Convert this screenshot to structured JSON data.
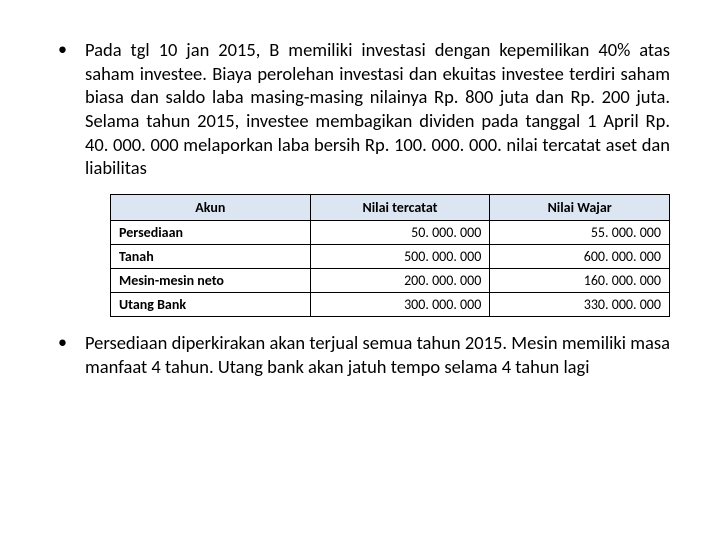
{
  "bullets": [
    "Pada tgl 10 jan 2015, B memiliki investasi dengan kepemilikan 40% atas saham investee. Biaya perolehan investasi dan ekuitas investee terdiri saham biasa dan saldo laba masing-masing nilainya Rp. 800 juta dan Rp. 200 juta. Selama tahun 2015, investee membagikan dividen pada tanggal 1 April Rp. 40. 000. 000 melaporkan laba bersih Rp. 100. 000. 000. nilai tercatat aset dan liabilitas",
    "Persediaan diperkirakan akan terjual semua tahun 2015. Mesin memiliki masa manfaat 4 tahun.  Utang bank akan jatuh tempo selama 4 tahun lagi"
  ],
  "table": {
    "headers": [
      "Akun",
      "Nilai tercatat",
      "Nilai Wajar"
    ],
    "rows": [
      [
        "Persediaan",
        "50. 000. 000",
        "55. 000. 000"
      ],
      [
        "Tanah",
        "500. 000. 000",
        "600. 000. 000"
      ],
      [
        "Mesin-mesin neto",
        "200. 000. 000",
        "160. 000. 000"
      ],
      [
        "Utang Bank",
        "300. 000. 000",
        "330. 000. 000"
      ]
    ],
    "header_bg": "#dce6f2",
    "border_color": "#000000"
  }
}
